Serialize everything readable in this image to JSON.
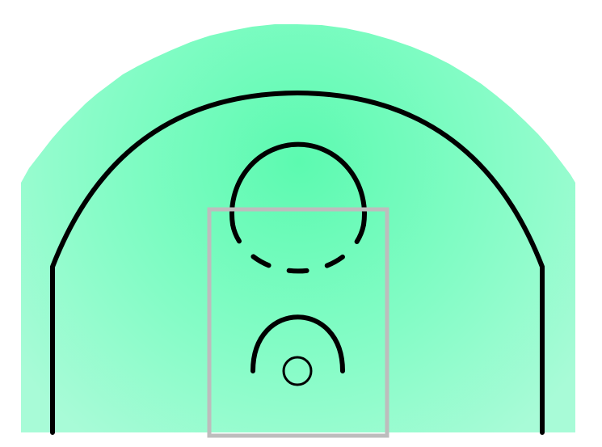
{
  "diagram": {
    "type": "half-court-heatmap",
    "colors": {
      "background": "#ffffff",
      "heat_center": "#5cfab0",
      "heat_mid": "#84fcc6",
      "heat_edge": "#a8fbd7",
      "court_lines": "#000000",
      "paint_outline": "#bdbdbd"
    },
    "elements": [
      "heat-zone",
      "three-point-line",
      "free-throw-circle-top",
      "free-throw-circle-bottom-dashed",
      "paint-box",
      "restricted-area-arc",
      "basket-rim"
    ]
  }
}
